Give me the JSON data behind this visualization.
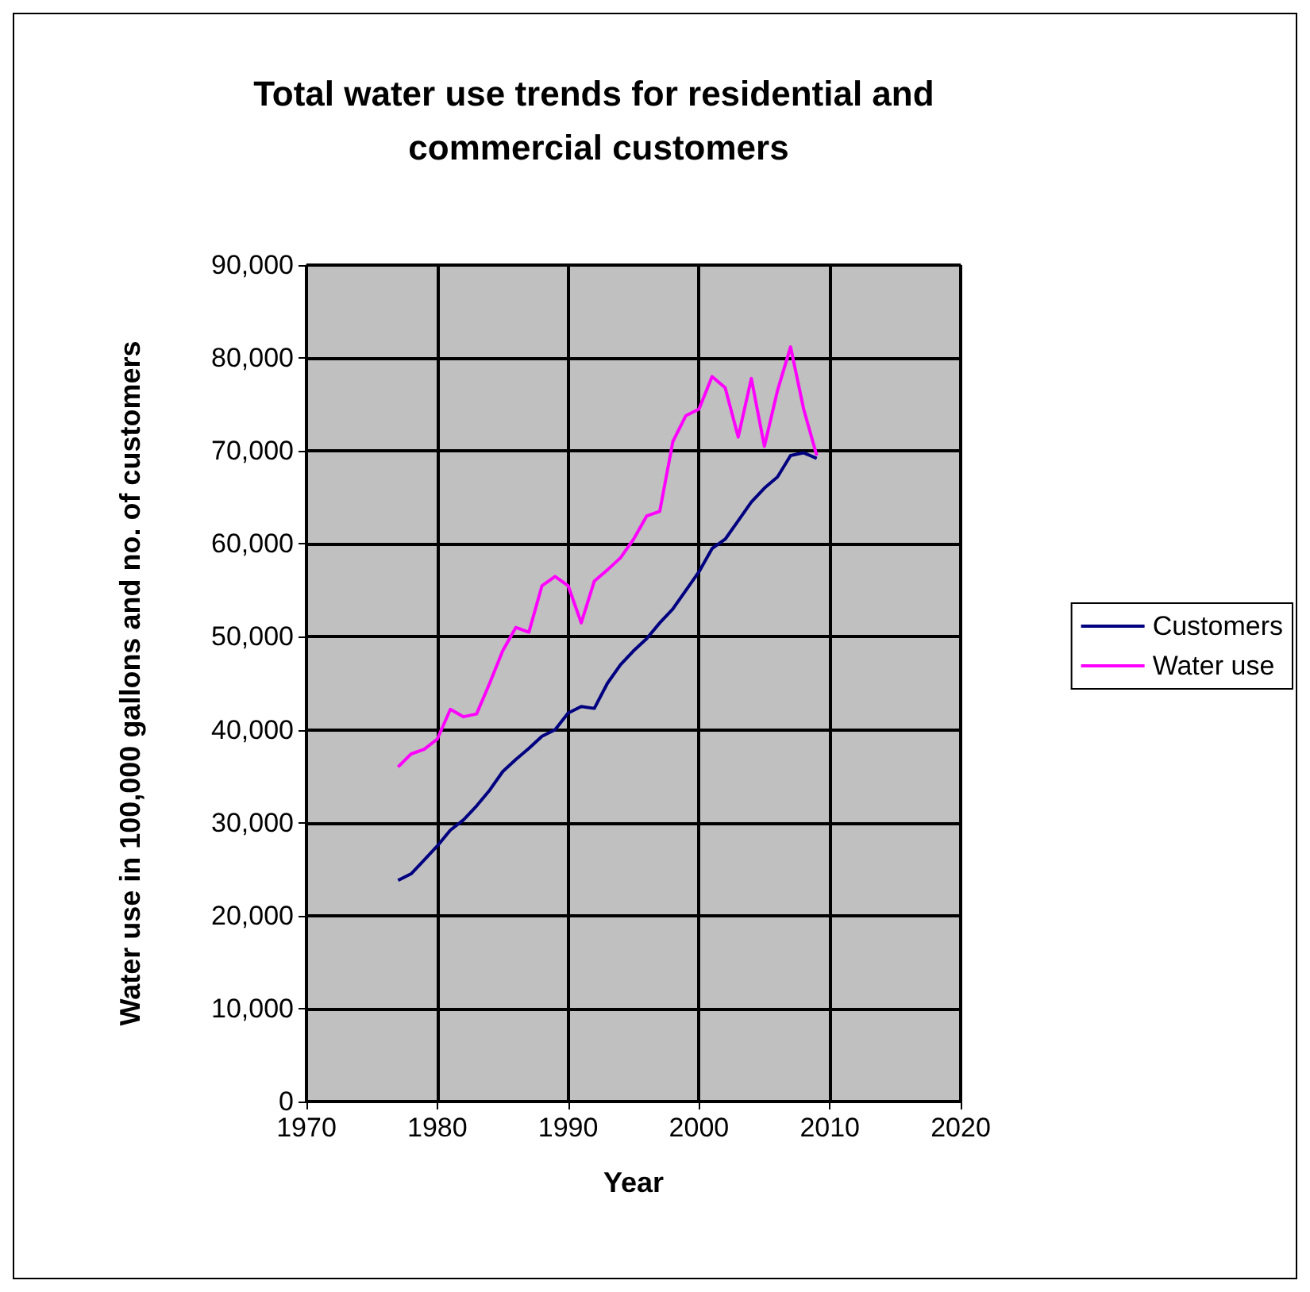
{
  "chart_data": {
    "type": "line",
    "title": "Total water use trends for residential and commercial customers",
    "xlabel": "Year",
    "ylabel": "Water use in 100,000 gallons and no. of customers",
    "x": [
      1977,
      1978,
      1979,
      1980,
      1981,
      1982,
      1983,
      1984,
      1985,
      1986,
      1987,
      1988,
      1989,
      1990,
      1991,
      1992,
      1993,
      1994,
      1995,
      1996,
      1997,
      1998,
      1999,
      2000,
      2001,
      2002,
      2003,
      2004,
      2005,
      2006,
      2007,
      2008,
      2009
    ],
    "series": [
      {
        "name": "Customers",
        "color": "#000080",
        "values": [
          23800,
          24500,
          26000,
          27500,
          29200,
          30300,
          31800,
          33500,
          35500,
          36800,
          38000,
          39300,
          40000,
          41800,
          42500,
          42300,
          45000,
          47000,
          48500,
          49800,
          51500,
          53000,
          55000,
          57000,
          59500,
          60500,
          62500,
          64500,
          66000,
          67200,
          69500,
          69800,
          69200
        ]
      },
      {
        "name": "Water use",
        "color": "#ff00ff",
        "values": [
          36000,
          37400,
          37900,
          39000,
          42200,
          41400,
          41700,
          45000,
          48500,
          51000,
          50500,
          55500,
          56500,
          55500,
          51500,
          56000,
          57200,
          58500,
          60500,
          63000,
          63500,
          71000,
          73800,
          74500,
          78000,
          76800,
          71500,
          77800,
          70500,
          76500,
          81200,
          74500,
          69500
        ]
      }
    ],
    "xlim": [
      1970,
      2020
    ],
    "xticks": [
      1970,
      1980,
      1990,
      2000,
      2010,
      2020
    ],
    "ylim": [
      0,
      90000
    ],
    "yticks": [
      0,
      {
        "value": 10000,
        "label": "10,000"
      },
      {
        "value": 20000,
        "label": "20,000"
      },
      {
        "value": 30000,
        "label": "30,000"
      },
      {
        "value": 40000,
        "label": "40,000"
      },
      {
        "value": 50000,
        "label": "50,000"
      },
      {
        "value": 60000,
        "label": "60,000"
      },
      {
        "value": 70000,
        "label": "70,000"
      },
      {
        "value": 80000,
        "label": "80,000"
      },
      {
        "value": 90000,
        "label": "90,000"
      }
    ],
    "grid": true,
    "legend": "right",
    "marker": "none",
    "line_style": "solid"
  }
}
